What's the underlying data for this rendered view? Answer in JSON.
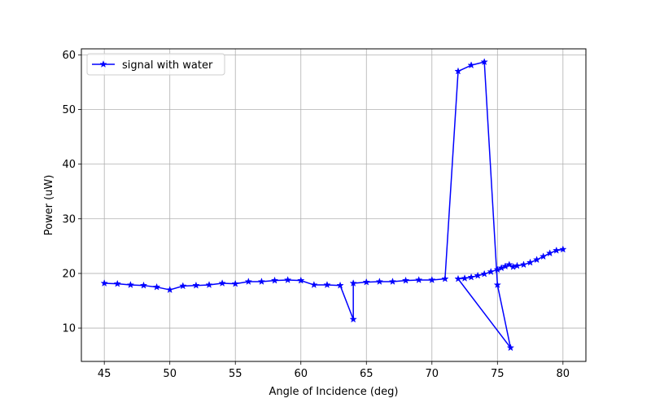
{
  "chart_data": {
    "type": "line",
    "xlabel": "Angle of Incidence (deg)",
    "ylabel": "Power (uW)",
    "xlim": [
      43.25,
      81.75
    ],
    "ylim": [
      3.9,
      61.1
    ],
    "xticks": [
      45,
      50,
      55,
      60,
      65,
      70,
      75,
      80
    ],
    "yticks": [
      10,
      20,
      30,
      40,
      50,
      60
    ],
    "grid": true,
    "legend_position": "upper-left",
    "series": [
      {
        "name": "signal with water",
        "color": "#0000ff",
        "marker": "star",
        "x": [
          45,
          46,
          47,
          48,
          49,
          50,
          51,
          52,
          53,
          54,
          55,
          56,
          57,
          58,
          59,
          60,
          61,
          62,
          63,
          64,
          64,
          65,
          66,
          67,
          68,
          69,
          70,
          71,
          72,
          73,
          74,
          75,
          76,
          72,
          72.5,
          73,
          73.5,
          74,
          74.5,
          75,
          75.3,
          75.6,
          75.9,
          76.2,
          76.5,
          77,
          77.5,
          78,
          78.5,
          79,
          79.5,
          80
        ],
        "y": [
          18.2,
          18.1,
          17.9,
          17.8,
          17.5,
          17.0,
          17.7,
          17.8,
          17.9,
          18.2,
          18.1,
          18.5,
          18.5,
          18.7,
          18.8,
          18.7,
          17.9,
          17.9,
          17.8,
          11.6,
          18.2,
          18.4,
          18.5,
          18.5,
          18.7,
          18.8,
          18.8,
          19.0,
          57.0,
          58.1,
          58.7,
          17.9,
          6.4,
          19.0,
          19.1,
          19.3,
          19.6,
          19.9,
          20.3,
          20.7,
          21.0,
          21.3,
          21.6,
          21.2,
          21.4,
          21.6,
          22.0,
          22.5,
          23.1,
          23.7,
          24.2,
          24.4
        ]
      }
    ]
  }
}
